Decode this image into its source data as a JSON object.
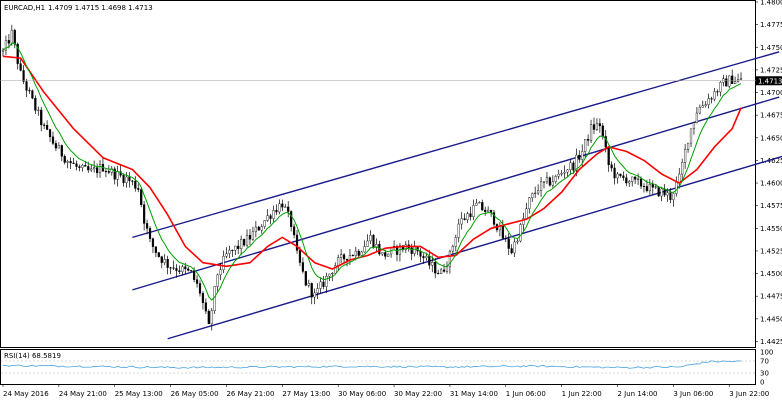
{
  "header": {
    "symbol_label": "EURCAD,H1",
    "ohlc_label": "1.4709 1.4715 1.4698 1.4713"
  },
  "rsi_panel": {
    "label": "RSI(14) 68.5819",
    "levels": [
      "100",
      "70",
      "30",
      "0"
    ],
    "value": 68.5819
  },
  "price_badge": "1.4713",
  "colors": {
    "background": "#ffffff",
    "frame": "#000000",
    "candle": "#000000",
    "bull_fill": "#ffffff",
    "bear_fill": "#000000",
    "ema_fast": "#00a000",
    "ema_slow": "#ff0000",
    "channel": "#1a1a8c",
    "rsi_line": "#4aa3df",
    "rsi_levels": "#b0b0b0",
    "badge_bg": "#000000",
    "badge_text": "#ffffff"
  },
  "chart_data": {
    "type": "candlestick",
    "symbol": "EURCAD",
    "timeframe": "H1",
    "y_ticks": [
      "1.4800",
      "1.4775",
      "1.4750",
      "1.4725",
      "1.4700",
      "1.4675",
      "1.4650",
      "1.4625",
      "1.4600",
      "1.4575",
      "1.4550",
      "1.4525",
      "1.4500",
      "1.4475",
      "1.4450",
      "1.4425"
    ],
    "ylim": [
      1.442,
      1.48
    ],
    "x_ticks": [
      "24 May 2016",
      "24 May 21:00",
      "25 May 13:00",
      "26 May 05:00",
      "26 May 21:00",
      "27 May 13:00",
      "30 May 06:00",
      "30 May 22:00",
      "31 May 14:00",
      "1 Jun 06:00",
      "1 Jun 22:00",
      "2 Jun 14:00",
      "3 Jun 06:00",
      "3 Jun 22:00"
    ],
    "close_path": [
      [
        0,
        1.4745
      ],
      [
        3,
        1.4765
      ],
      [
        6,
        1.472
      ],
      [
        10,
        1.469
      ],
      [
        14,
        1.466
      ],
      [
        18,
        1.464
      ],
      [
        22,
        1.4625
      ],
      [
        26,
        1.4615
      ],
      [
        30,
        1.4612
      ],
      [
        34,
        1.4618
      ],
      [
        38,
        1.461
      ],
      [
        42,
        1.4605
      ],
      [
        46,
        1.4595
      ],
      [
        48,
        1.456
      ],
      [
        50,
        1.4535
      ],
      [
        53,
        1.452
      ],
      [
        56,
        1.451
      ],
      [
        60,
        1.4505
      ],
      [
        64,
        1.45
      ],
      [
        67,
        1.448
      ],
      [
        70,
        1.444
      ],
      [
        73,
        1.45
      ],
      [
        76,
        1.452
      ],
      [
        80,
        1.453
      ],
      [
        84,
        1.454
      ],
      [
        88,
        1.4555
      ],
      [
        92,
        1.457
      ],
      [
        95,
        1.4578
      ],
      [
        98,
        1.4555
      ],
      [
        100,
        1.452
      ],
      [
        103,
        1.449
      ],
      [
        106,
        1.4475
      ],
      [
        109,
        1.449
      ],
      [
        113,
        1.451
      ],
      [
        117,
        1.452
      ],
      [
        121,
        1.4525
      ],
      [
        125,
        1.454
      ],
      [
        129,
        1.452
      ],
      [
        133,
        1.4525
      ],
      [
        137,
        1.453
      ],
      [
        141,
        1.4525
      ],
      [
        145,
        1.451
      ],
      [
        149,
        1.45
      ],
      [
        152,
        1.452
      ],
      [
        155,
        1.4555
      ],
      [
        158,
        1.4565
      ],
      [
        161,
        1.4575
      ],
      [
        164,
        1.457
      ],
      [
        167,
        1.456
      ],
      [
        170,
        1.454
      ],
      [
        173,
        1.4525
      ],
      [
        176,
        1.455
      ],
      [
        179,
        1.458
      ],
      [
        182,
        1.4595
      ],
      [
        185,
        1.46
      ],
      [
        188,
        1.4605
      ],
      [
        191,
        1.4615
      ],
      [
        194,
        1.462
      ],
      [
        197,
        1.4635
      ],
      [
        200,
        1.466
      ],
      [
        203,
        1.4665
      ],
      [
        206,
        1.462
      ],
      [
        209,
        1.4605
      ],
      [
        212,
        1.4605
      ],
      [
        215,
        1.46
      ],
      [
        218,
        1.4598
      ],
      [
        221,
        1.4592
      ],
      [
        224,
        1.459
      ],
      [
        227,
        1.4585
      ],
      [
        230,
        1.4605
      ],
      [
        233,
        1.465
      ],
      [
        236,
        1.468
      ],
      [
        239,
        1.469
      ],
      [
        242,
        1.47
      ],
      [
        245,
        1.471
      ],
      [
        248,
        1.4715
      ],
      [
        251,
        1.4713
      ]
    ],
    "ema_slow": [
      [
        0,
        1.474
      ],
      [
        6,
        1.4738
      ],
      [
        14,
        1.47
      ],
      [
        24,
        1.466
      ],
      [
        34,
        1.4628
      ],
      [
        44,
        1.4615
      ],
      [
        50,
        1.4595
      ],
      [
        56,
        1.4565
      ],
      [
        62,
        1.453
      ],
      [
        68,
        1.4512
      ],
      [
        76,
        1.4508
      ],
      [
        84,
        1.4512
      ],
      [
        90,
        1.453
      ],
      [
        95,
        1.454
      ],
      [
        100,
        1.453
      ],
      [
        106,
        1.4512
      ],
      [
        112,
        1.4505
      ],
      [
        118,
        1.4515
      ],
      [
        124,
        1.452
      ],
      [
        130,
        1.4528
      ],
      [
        136,
        1.453
      ],
      [
        142,
        1.453
      ],
      [
        148,
        1.4518
      ],
      [
        154,
        1.452
      ],
      [
        160,
        1.4538
      ],
      [
        166,
        1.455
      ],
      [
        172,
        1.4555
      ],
      [
        178,
        1.456
      ],
      [
        184,
        1.4572
      ],
      [
        190,
        1.459
      ],
      [
        196,
        1.4615
      ],
      [
        202,
        1.4632
      ],
      [
        206,
        1.464
      ],
      [
        212,
        1.4635
      ],
      [
        218,
        1.4625
      ],
      [
        224,
        1.461
      ],
      [
        230,
        1.46
      ],
      [
        236,
        1.4615
      ],
      [
        242,
        1.464
      ],
      [
        248,
        1.466
      ],
      [
        251,
        1.4683
      ]
    ],
    "rsi_path": [
      [
        0,
        55
      ],
      [
        30,
        52
      ],
      [
        60,
        48
      ],
      [
        90,
        50
      ],
      [
        120,
        52
      ],
      [
        150,
        50
      ],
      [
        180,
        53
      ],
      [
        210,
        48
      ],
      [
        230,
        50
      ],
      [
        240,
        68
      ],
      [
        251,
        69
      ]
    ],
    "channel_lines": [
      {
        "name": "upper",
        "from": [
          44,
          1.454
        ],
        "to": [
          264,
          1.4745
        ]
      },
      {
        "name": "middle",
        "from": [
          44,
          1.4482
        ],
        "to": [
          264,
          1.4695
        ]
      },
      {
        "name": "lower",
        "from": [
          56,
          1.4428
        ],
        "to": [
          276,
          1.464
        ]
      }
    ]
  }
}
